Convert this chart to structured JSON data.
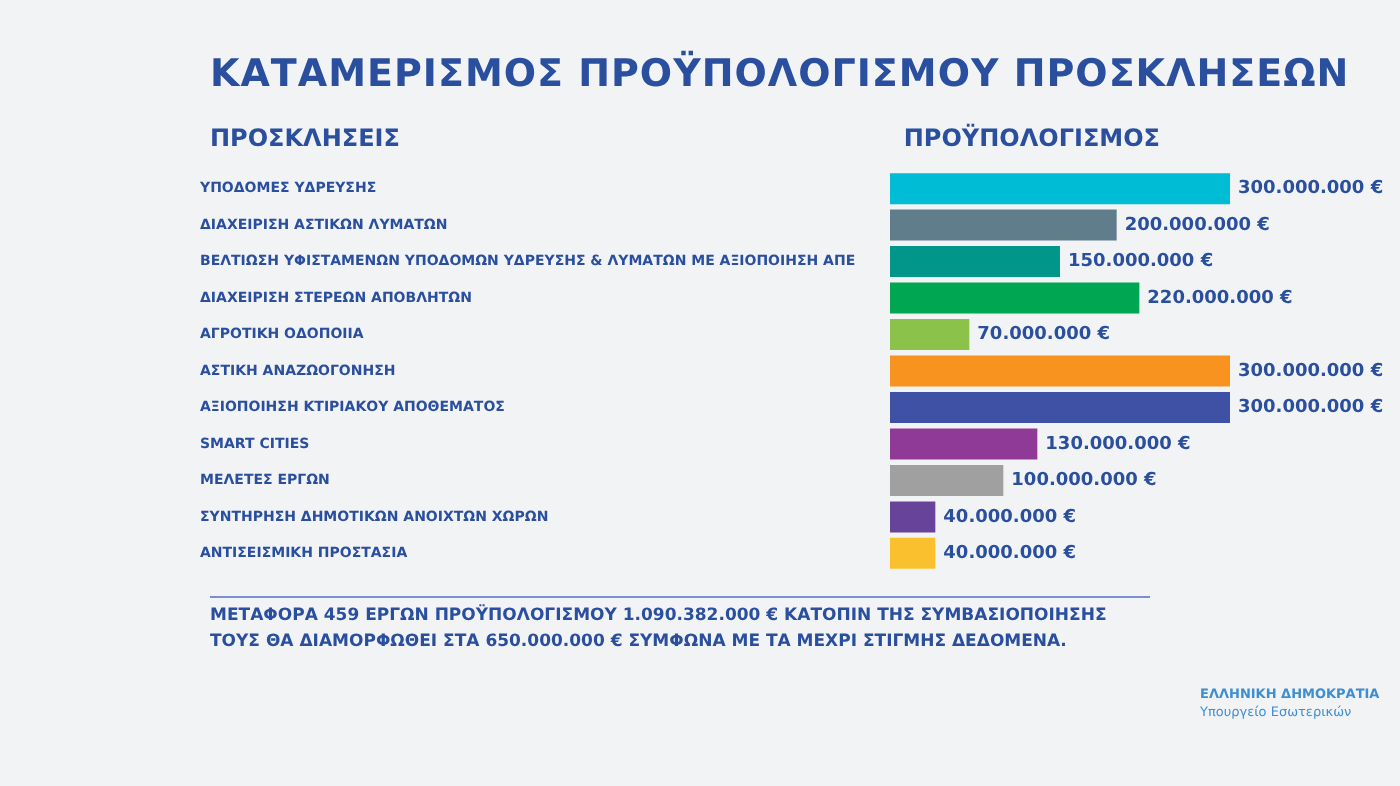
{
  "chart_data": {
    "type": "bar",
    "orientation": "horizontal",
    "title": "ΚΑΤΑΜΕΡΙΣΜΟΣ ΠΡΟΫΠΟΛΟΓΙΣΜΟΥ ΠΡΟΣΚΛΗΣΕΩΝ",
    "ylabel": "ΠΡΟΣΚΛΗΣΕΙΣ",
    "xlabel": "ΠΡΟΫΠΟΛΟΓΙΣΜΟΣ",
    "categories": [
      "ΥΠΟΔΟΜΕΣ ΥΔΡΕΥΣΗΣ",
      "ΔΙΑΧΕΙΡΙΣΗ ΑΣΤΙΚΩΝ ΛΥΜΑΤΩΝ",
      "ΒΕΛΤΙΩΣΗ ΥΦΙΣΤΑΜΕΝΩΝ ΥΠΟΔΟΜΩΝ ΥΔΡΕΥΣΗΣ & ΛΥΜΑΤΩΝ ΜΕ ΑΞΙΟΠΟΙΗΣΗ ΑΠΕ",
      "ΔΙΑΧΕΙΡΙΣΗ ΣΤΕΡΕΩΝ ΑΠΟΒΛΗΤΩΝ",
      "ΑΓΡΟΤΙΚΗ ΟΔΟΠΟΙΙΑ",
      "ΑΣΤΙΚΗ ΑΝΑΖΩΟΓΟΝΗΣΗ",
      "ΑΞΙΟΠΟΙΗΣΗ ΚΤΙΡΙΑΚΟΥ ΑΠΟΘΕΜΑΤΟΣ",
      "SMART CITIES",
      "ΜΕΛΕΤΕΣ ΕΡΓΩΝ",
      "ΣΥΝΤΗΡΗΣΗ ΔΗΜΟΤΙΚΩΝ ΑΝΟΙΧΤΩΝ ΧΩΡΩΝ",
      "ΑΝΤΙΣΕΙΣΜΙΚΗ ΠΡΟΣΤΑΣΙΑ"
    ],
    "values": [
      300000000,
      200000000,
      150000000,
      220000000,
      70000000,
      300000000,
      300000000,
      130000000,
      100000000,
      40000000,
      40000000
    ],
    "value_labels": [
      "300.000.000 €",
      "200.000.000 €",
      "150.000.000 €",
      "220.000.000 €",
      "70.000.000 €",
      "300.000.000 €",
      "300.000.000 €",
      "130.000.000 €",
      "100.000.000 €",
      "40.000.000 €",
      "40.000.000 €"
    ],
    "colors": [
      "#00bcd4",
      "#607d8b",
      "#00968a",
      "#00a651",
      "#8bc34a",
      "#f7931e",
      "#3f51a5",
      "#8e3a96",
      "#a0a0a0",
      "#68439a",
      "#fbc02d"
    ],
    "tick_labels": "y",
    "grid": false,
    "legend": false,
    "annotations": [
      "ΜΕΤΑΦΟΡΑ 459 ΕΡΓΩΝ ΠΡΟΫΠΟΛΟΓΙΣΜΟΥ 1.090.382.000 € ΚΑΤΟΠΙΝ ΤΗΣ ΣΥΜΒΑΣΙΟΠΟΙΗΣΗΣ ΤΟΥΣ ΘΑ ΔΙΑΜΟΡΦΩΘΕΙ ΣΤΑ 650.000.000 € ΣΥΜΦΩΝΑ ΜΕ ΤΑ ΜΕΧΡΙ ΣΤΙΓΜΗΣ ΔΕΔΟΜΕΝΑ.",
      "ΕΛΛΗΝΙΚΗ ΔΗΜΟΚΡΑΤΙΑ",
      "Υπουργείο Εσωτερικών"
    ]
  }
}
